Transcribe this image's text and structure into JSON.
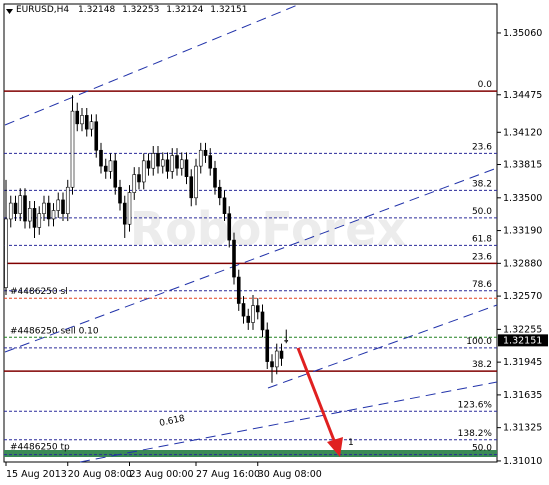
{
  "chart_data": {
    "type": "candlestick",
    "title": "EURUSD,H4",
    "watermark": "RoboForex",
    "categories": [
      "15 Aug 2013",
      null,
      null,
      null,
      null,
      null,
      null,
      null,
      null,
      null,
      null,
      null,
      null,
      "20 Aug 08:00",
      null,
      null,
      null,
      null,
      null,
      null,
      null,
      null,
      null,
      null,
      null,
      null,
      "23 Aug 00:00",
      null,
      null,
      null,
      null,
      null,
      null,
      null,
      null,
      null,
      null,
      null,
      null,
      null,
      "27 Aug 16:00",
      null,
      null,
      null,
      null,
      null,
      null,
      null,
      null,
      null,
      null,
      null,
      null,
      "30 Aug 08:00",
      null,
      null,
      null,
      null,
      null,
      null
    ],
    "open": [
      1.3265,
      1.333,
      1.3345,
      1.3335,
      1.3352,
      1.3328,
      1.334,
      1.3322,
      1.3335,
      1.3345,
      1.333,
      1.3338,
      1.3348,
      1.3335,
      1.336,
      1.3432,
      1.342,
      1.3428,
      1.3415,
      1.3422,
      1.3395,
      1.338,
      1.3375,
      1.3385,
      1.336,
      1.3345,
      1.3325,
      1.3355,
      1.3372,
      1.3365,
      1.3385,
      1.3378,
      1.3392,
      1.338,
      1.3386,
      1.3375,
      1.339,
      1.3378,
      1.3386,
      1.337,
      1.335,
      1.338,
      1.3395,
      1.339,
      1.3378,
      1.336,
      1.335,
      1.3335,
      1.331,
      1.3275,
      1.325,
      1.3238,
      1.3232,
      1.3248,
      1.3242,
      1.3225,
      1.3195,
      1.319,
      1.3205,
      1.32148
    ],
    "high": [
      1.3367,
      1.3352,
      1.3352,
      1.3359,
      1.3359,
      1.3347,
      1.3347,
      1.3342,
      1.3352,
      1.3352,
      1.3345,
      1.3355,
      1.3355,
      1.3367,
      1.3447,
      1.344,
      1.3435,
      1.3435,
      1.3429,
      1.3429,
      1.3402,
      1.3387,
      1.3392,
      1.3392,
      1.3367,
      1.3352,
      1.3362,
      1.3379,
      1.3379,
      1.3392,
      1.3392,
      1.3399,
      1.3399,
      1.3393,
      1.3393,
      1.3397,
      1.3397,
      1.3393,
      1.3393,
      1.3377,
      1.3387,
      1.3402,
      1.3402,
      1.3397,
      1.3385,
      1.3367,
      1.3357,
      1.3342,
      1.3317,
      1.3282,
      1.3257,
      1.3245,
      1.3258,
      1.3255,
      1.3249,
      1.3232,
      1.3202,
      1.3212,
      1.3212,
      1.32253
    ],
    "low": [
      1.3258,
      1.3322,
      1.3328,
      1.3328,
      1.3321,
      1.3321,
      1.3312,
      1.3315,
      1.3328,
      1.3323,
      1.3323,
      1.3331,
      1.3328,
      1.3328,
      1.3353,
      1.3413,
      1.3413,
      1.3408,
      1.3408,
      1.3388,
      1.3373,
      1.3368,
      1.3368,
      1.3353,
      1.3338,
      1.3312,
      1.3318,
      1.3348,
      1.3358,
      1.3358,
      1.3371,
      1.3371,
      1.3373,
      1.3373,
      1.3368,
      1.3368,
      1.3371,
      1.3371,
      1.3363,
      1.3342,
      1.3343,
      1.3373,
      1.3383,
      1.3371,
      1.3353,
      1.3343,
      1.3328,
      1.3303,
      1.3268,
      1.3243,
      1.3231,
      1.3225,
      1.3225,
      1.3235,
      1.3218,
      1.3188,
      1.3175,
      1.3183,
      1.3191,
      1.32124
    ],
    "close": [
      1.333,
      1.3345,
      1.3335,
      1.3352,
      1.3328,
      1.334,
      1.3322,
      1.3335,
      1.3345,
      1.333,
      1.3338,
      1.3348,
      1.3335,
      1.336,
      1.3432,
      1.342,
      1.3428,
      1.3415,
      1.3422,
      1.3395,
      1.338,
      1.3375,
      1.3385,
      1.336,
      1.3345,
      1.3325,
      1.3355,
      1.3372,
      1.3365,
      1.3385,
      1.3378,
      1.3392,
      1.338,
      1.3386,
      1.3375,
      1.339,
      1.3378,
      1.3386,
      1.337,
      1.335,
      1.338,
      1.3395,
      1.339,
      1.3378,
      1.336,
      1.335,
      1.3335,
      1.331,
      1.3275,
      1.325,
      1.3238,
      1.3232,
      1.3248,
      1.3242,
      1.3225,
      1.3195,
      1.319,
      1.3205,
      1.3198,
      1.32151
    ],
    "bull_color": "#ffffff",
    "bear_color": "#000000",
    "ylim": [
      1.31,
      1.35334
    ],
    "yticks": [
      {
        "value": 1.3506,
        "label": "1.35060"
      },
      {
        "value": 1.34475,
        "label": "1.34475"
      },
      {
        "value": 1.3412,
        "label": "1.34120"
      },
      {
        "value": 1.33815,
        "label": "1.33815"
      },
      {
        "value": 1.335,
        "label": "1.33500"
      },
      {
        "value": 1.3319,
        "label": "1.33190"
      },
      {
        "value": 1.3288,
        "label": "1.32880"
      },
      {
        "value": 1.3257,
        "label": "1.32570"
      },
      {
        "value": 1.32255,
        "label": "1.32255"
      },
      {
        "value": 1.31945,
        "label": "1.31945"
      },
      {
        "value": 1.31635,
        "label": "1.31635"
      },
      {
        "value": 1.31325,
        "label": "1.31325"
      },
      {
        "value": 1.3101,
        "label": "1.31010"
      }
    ],
    "levels": [
      {
        "label": "0.0",
        "value": 1.3451,
        "color": "#800000",
        "dash": false,
        "side": "right",
        "width": 1.5
      },
      {
        "label": "23.6",
        "value": 1.3392,
        "color": "#2b2b9a",
        "dash": true,
        "side": "right",
        "width": 1
      },
      {
        "label": "38.2",
        "value": 1.3357,
        "color": "#2b2b9a",
        "dash": true,
        "side": "right",
        "width": 1
      },
      {
        "label": "50.0",
        "value": 1.3331,
        "color": "#2b2b9a",
        "dash": true,
        "side": "right",
        "width": 1
      },
      {
        "label": "61.8",
        "value": 1.3305,
        "color": "#2b2b9a",
        "dash": true,
        "side": "right",
        "width": 1
      },
      {
        "label": "23.6",
        "value": 1.3288,
        "color": "#800000",
        "dash": false,
        "side": "right",
        "width": 1.5
      },
      {
        "label": "78.6",
        "value": 1.3262,
        "color": "#2b2b9a",
        "dash": true,
        "side": "right",
        "width": 1
      },
      {
        "label": "#4486250 sl",
        "value": 1.3255,
        "color": "#e04020",
        "dash": true,
        "side": "left",
        "width": 1
      },
      {
        "label": "#4486250 sell 0.10",
        "value": 1.3218,
        "color": "#208020",
        "dash": true,
        "side": "left",
        "width": 1
      },
      {
        "label": "100.0",
        "value": 1.3208,
        "color": "#2b2b9a",
        "dash": true,
        "side": "right",
        "width": 1
      },
      {
        "label": "38.2",
        "value": 1.3186,
        "color": "#800000",
        "dash": false,
        "side": "right",
        "width": 1.5
      },
      {
        "label": "123.6%",
        "value": 1.3148,
        "color": "#2b2b9a",
        "dash": true,
        "side": "right",
        "width": 1
      },
      {
        "label": "138.2%",
        "value": 1.3121,
        "color": "#2b2b9a",
        "dash": true,
        "side": "right",
        "width": 1
      },
      {
        "label": "#4486250 tp",
        "value": 1.3108,
        "color": "#3a8a55",
        "dash": false,
        "side": "left",
        "width": 7
      },
      {
        "label": "50.0",
        "value": 1.3107,
        "color": "#2b2b9a",
        "dash": true,
        "side": "right",
        "width": 1
      }
    ],
    "line_labels": [
      "0.618",
      "1"
    ]
  }
}
